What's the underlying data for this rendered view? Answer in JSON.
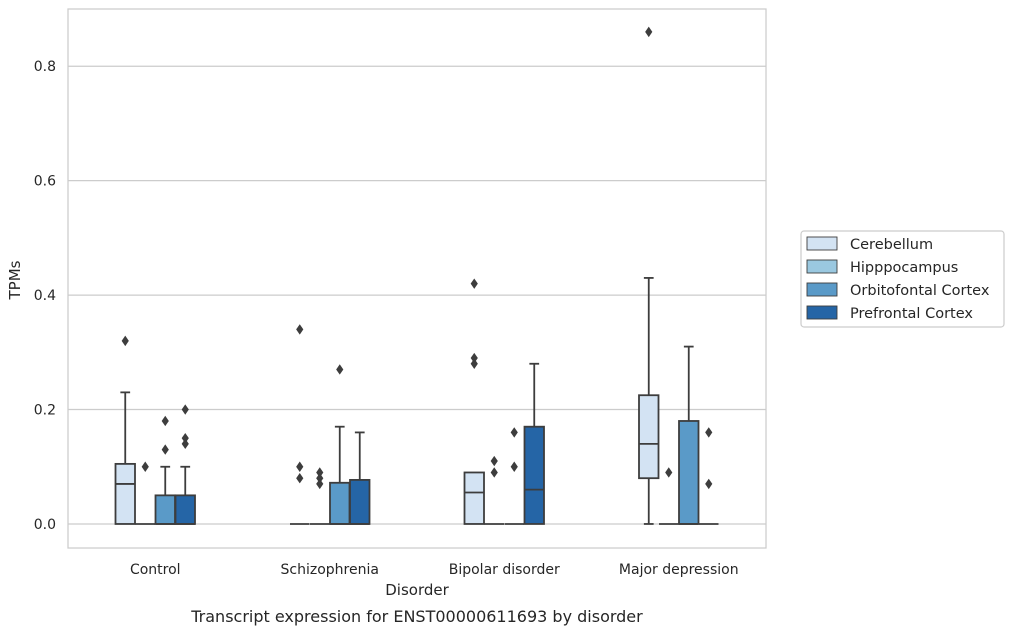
{
  "caption": "Transcript expression for ENST00000611693 by disorder",
  "chart_data": {
    "type": "box",
    "xlabel": "Disorder",
    "ylabel": "TPMs",
    "ylim": [
      -0.042,
      0.9
    ],
    "yticks": [
      0.0,
      0.2,
      0.4,
      0.6,
      0.8
    ],
    "ytick_labels": [
      "0.0",
      "0.2",
      "0.4",
      "0.6",
      "0.8"
    ],
    "grid": "horizontal",
    "legend_position": "right",
    "categories": [
      "Control",
      "Schizophrenia",
      "Bipolar disorder",
      "Major depression"
    ],
    "series": [
      {
        "name": "Cerebellum",
        "color": "#d3e3f3",
        "boxes": [
          {
            "q1": 0.0,
            "median": 0.07,
            "q3": 0.105,
            "whisker_low": 0.0,
            "whisker_high": 0.23,
            "outliers": [
              0.32
            ]
          },
          {
            "q1": 0.0,
            "median": 0.0,
            "q3": 0.0,
            "whisker_low": 0.0,
            "whisker_high": 0.0,
            "outliers": [
              0.34,
              0.1,
              0.08
            ]
          },
          {
            "q1": 0.0,
            "median": 0.055,
            "q3": 0.09,
            "whisker_low": 0.0,
            "whisker_high": 0.09,
            "outliers": [
              0.42,
              0.29,
              0.28
            ]
          },
          {
            "q1": 0.08,
            "median": 0.14,
            "q3": 0.225,
            "whisker_low": 0.0,
            "whisker_high": 0.43,
            "outliers": [
              0.86
            ]
          }
        ]
      },
      {
        "name": "Hipppocampus",
        "color": "#9ac8e0",
        "boxes": [
          {
            "q1": 0.0,
            "median": 0.0,
            "q3": 0.0,
            "whisker_low": 0.0,
            "whisker_high": 0.0,
            "outliers": [
              0.1
            ]
          },
          {
            "q1": 0.0,
            "median": 0.0,
            "q3": 0.0,
            "whisker_low": 0.0,
            "whisker_high": 0.0,
            "outliers": [
              0.09,
              0.08,
              0.07
            ]
          },
          {
            "q1": 0.0,
            "median": 0.0,
            "q3": 0.0,
            "whisker_low": 0.0,
            "whisker_high": 0.0,
            "outliers": [
              0.11,
              0.09
            ]
          },
          {
            "q1": 0.0,
            "median": 0.0,
            "q3": 0.0,
            "whisker_low": 0.0,
            "whisker_high": 0.0,
            "outliers": [
              0.09
            ]
          }
        ]
      },
      {
        "name": "Orbitofontal Cortex",
        "color": "#5a9ac8",
        "boxes": [
          {
            "q1": 0.0,
            "median": 0.0,
            "q3": 0.05,
            "whisker_low": 0.0,
            "whisker_high": 0.1,
            "outliers": [
              0.18,
              0.13
            ]
          },
          {
            "q1": 0.0,
            "median": 0.0,
            "q3": 0.072,
            "whisker_low": 0.0,
            "whisker_high": 0.17,
            "outliers": [
              0.27
            ]
          },
          {
            "q1": 0.0,
            "median": 0.0,
            "q3": 0.0,
            "whisker_low": 0.0,
            "whisker_high": 0.0,
            "outliers": [
              0.16,
              0.1
            ]
          },
          {
            "q1": 0.0,
            "median": 0.0,
            "q3": 0.18,
            "whisker_low": 0.0,
            "whisker_high": 0.31,
            "outliers": []
          }
        ]
      },
      {
        "name": "Prefrontal Cortex",
        "color": "#2565a6",
        "boxes": [
          {
            "q1": 0.0,
            "median": 0.0,
            "q3": 0.05,
            "whisker_low": 0.0,
            "whisker_high": 0.1,
            "outliers": [
              0.2,
              0.15,
              0.14
            ]
          },
          {
            "q1": 0.0,
            "median": 0.0,
            "q3": 0.077,
            "whisker_low": 0.0,
            "whisker_high": 0.16,
            "outliers": []
          },
          {
            "q1": 0.0,
            "median": 0.06,
            "q3": 0.17,
            "whisker_low": 0.0,
            "whisker_high": 0.28,
            "outliers": []
          },
          {
            "q1": 0.0,
            "median": 0.0,
            "q3": 0.0,
            "whisker_low": 0.0,
            "whisker_high": 0.0,
            "outliers": [
              0.16,
              0.07
            ]
          }
        ]
      }
    ]
  }
}
